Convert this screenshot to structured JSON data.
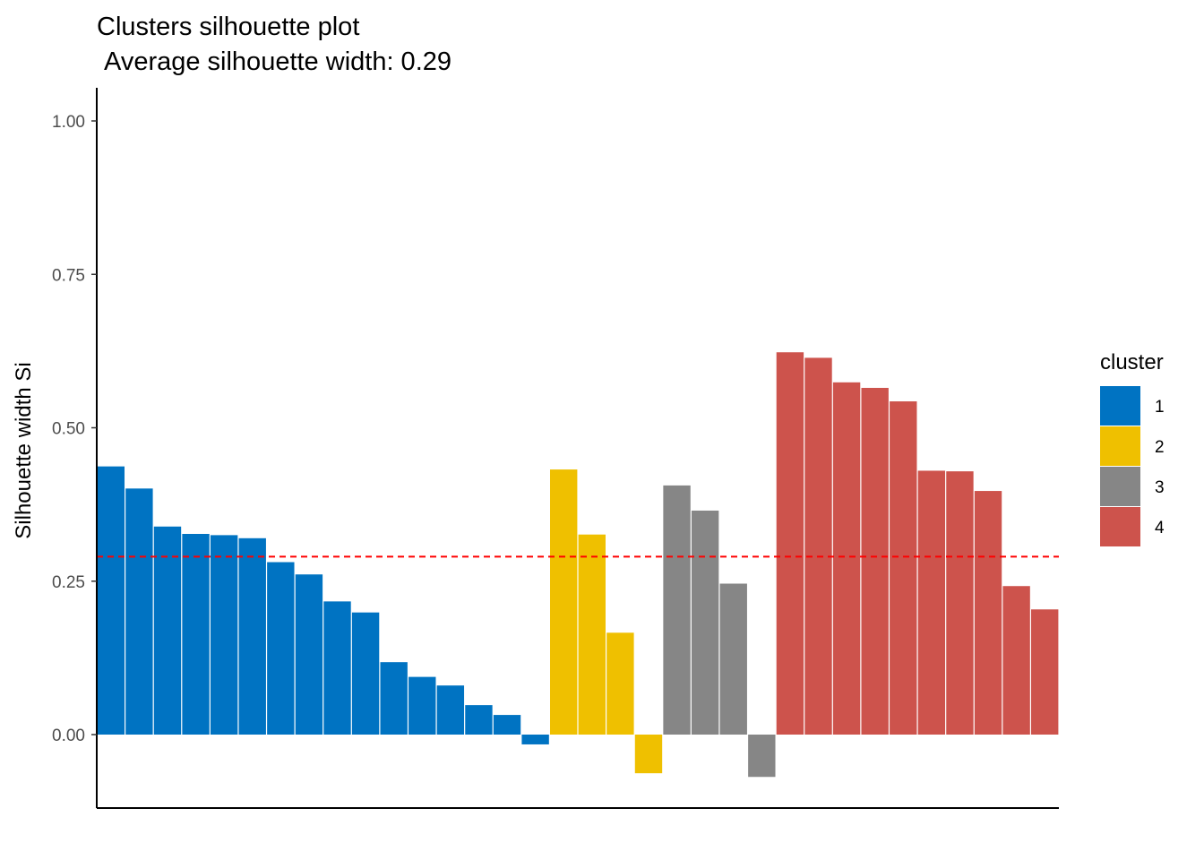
{
  "chart_data": {
    "type": "bar",
    "title": "Clusters silhouette plot",
    "subtitle": "Average silhouette width: 0.29",
    "ylabel": "Silhouette width Si",
    "xlabel": "",
    "ylim": [
      -0.12,
      1.05
    ],
    "yticks": [
      "0.00",
      "0.25",
      "0.50",
      "0.75",
      "1.00"
    ],
    "ytick_values": [
      0,
      0.25,
      0.5,
      0.75,
      1.0
    ],
    "reference_line": 0.29,
    "reference_line_color": "#ff0000",
    "legend": {
      "title": "cluster",
      "position": "right",
      "items": [
        {
          "label": "1",
          "color": "#0073c2"
        },
        {
          "label": "2",
          "color": "#efc000"
        },
        {
          "label": "3",
          "color": "#868686"
        },
        {
          "label": "4",
          "color": "#cd534c"
        }
      ]
    },
    "grid": false,
    "values": [
      0.437,
      0.401,
      0.339,
      0.327,
      0.325,
      0.32,
      0.281,
      0.261,
      0.217,
      0.199,
      0.118,
      0.094,
      0.08,
      0.048,
      0.032,
      -0.016,
      0.432,
      0.326,
      0.166,
      -0.063,
      0.406,
      0.365,
      0.246,
      -0.069,
      0.623,
      0.614,
      0.574,
      0.565,
      0.543,
      0.43,
      0.429,
      0.397,
      0.242,
      0.204
    ],
    "clusters": [
      "1",
      "1",
      "1",
      "1",
      "1",
      "1",
      "1",
      "1",
      "1",
      "1",
      "1",
      "1",
      "1",
      "1",
      "1",
      "1",
      "2",
      "2",
      "2",
      "2",
      "3",
      "3",
      "3",
      "3",
      "4",
      "4",
      "4",
      "4",
      "4",
      "4",
      "4",
      "4",
      "4",
      "4"
    ]
  }
}
